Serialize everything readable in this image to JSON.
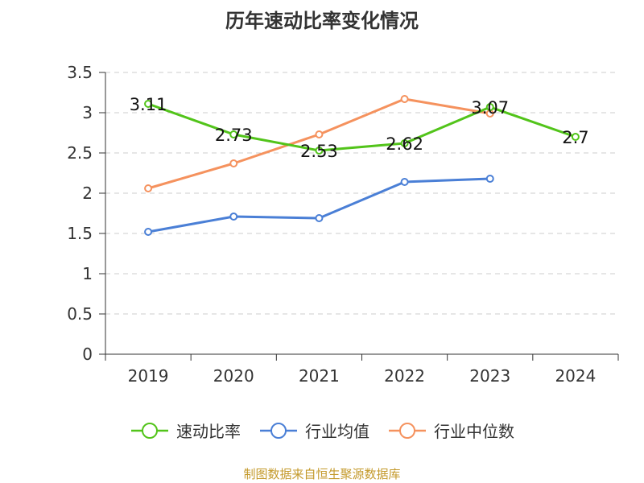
{
  "chart_data": {
    "type": "line",
    "title": "历年速动比率变化情况",
    "categories": [
      "2019",
      "2020",
      "2021",
      "2022",
      "2023",
      "2024"
    ],
    "ylim": [
      0,
      3.5
    ],
    "yticks": [
      0,
      0.5,
      1,
      1.5,
      2,
      2.5,
      3,
      3.5
    ],
    "ytick_labels": [
      "0",
      "0.5",
      "1",
      "1.5",
      "2",
      "2.5",
      "3",
      "3.5"
    ],
    "grid": true,
    "legend_position": "bottom",
    "series": [
      {
        "name": "速动比率",
        "color": "#52c41a",
        "values": [
          3.11,
          2.73,
          2.53,
          2.62,
          3.07,
          2.7
        ],
        "labels": [
          "3.11",
          "2.73",
          "2.53",
          "2.62",
          "3.07",
          "2.7"
        ]
      },
      {
        "name": "行业均值",
        "color": "#4a7fd6",
        "values": [
          1.52,
          1.71,
          1.69,
          2.14,
          2.18,
          null
        ]
      },
      {
        "name": "行业中位数",
        "color": "#f5925e",
        "values": [
          2.06,
          2.37,
          2.73,
          3.17,
          2.99,
          null
        ]
      }
    ]
  },
  "source_text": "制图数据来自恒生聚源数据库"
}
